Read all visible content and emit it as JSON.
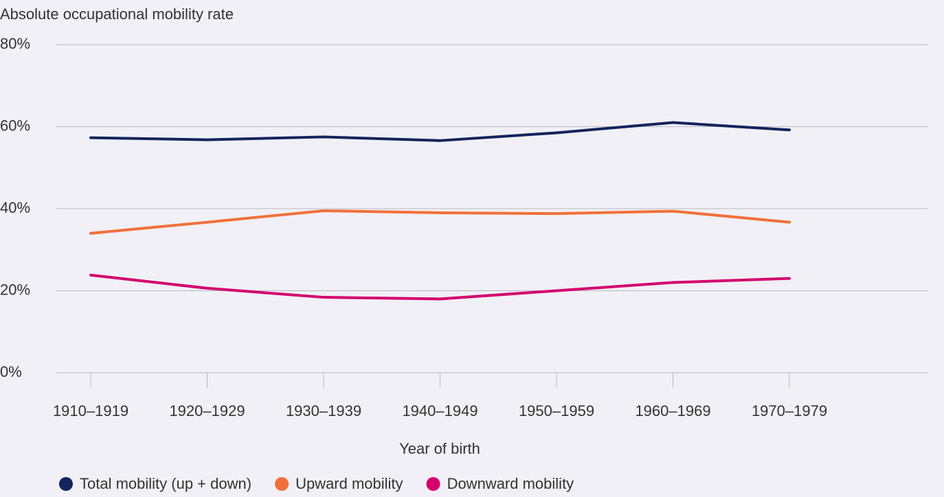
{
  "chart_data": {
    "type": "line",
    "title": "Absolute occupational mobility rate",
    "x_label": "Year of birth",
    "categories": [
      "1910–1919",
      "1920–1929",
      "1930–1939",
      "1940–1949",
      "1950–1959",
      "1960–1969",
      "1970–1979"
    ],
    "series": [
      {
        "name": "Total mobility (up + down)",
        "color": "#14245c",
        "values": [
          57.3,
          56.8,
          57.5,
          56.6,
          58.5,
          61,
          59.2
        ]
      },
      {
        "name": "Upward mobility",
        "color": "#f0703a",
        "values": [
          34,
          36.7,
          39.5,
          39,
          38.8,
          39.4,
          36.7
        ]
      },
      {
        "name": "Downward mobility",
        "color": "#d4006e",
        "values": [
          23.8,
          20.6,
          18.4,
          18,
          20,
          22,
          23
        ]
      }
    ],
    "ylim": [
      0,
      80
    ],
    "yticks": [
      {
        "value": 0,
        "label": "0%"
      },
      {
        "value": 20,
        "label": "20%"
      },
      {
        "value": 40,
        "label": "40%"
      },
      {
        "value": 60,
        "label": "60%"
      },
      {
        "value": 80,
        "label": "80%"
      }
    ],
    "grid": true,
    "legend": "bottom"
  }
}
